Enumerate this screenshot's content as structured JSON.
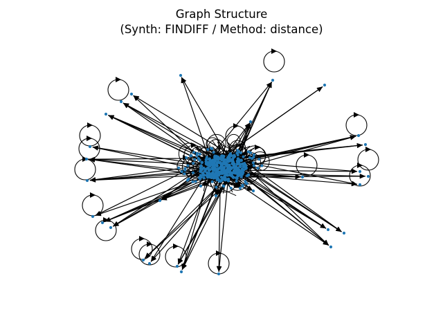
{
  "figure": {
    "title_line1": "Graph Structure",
    "title_line2": "(Synth: FINDIFF / Method: distance)"
  },
  "colors": {
    "node": "#1f77b4",
    "edge": "#000000",
    "background": "#ffffff"
  },
  "graph": {
    "directed": true,
    "self_loops": true
  }
}
